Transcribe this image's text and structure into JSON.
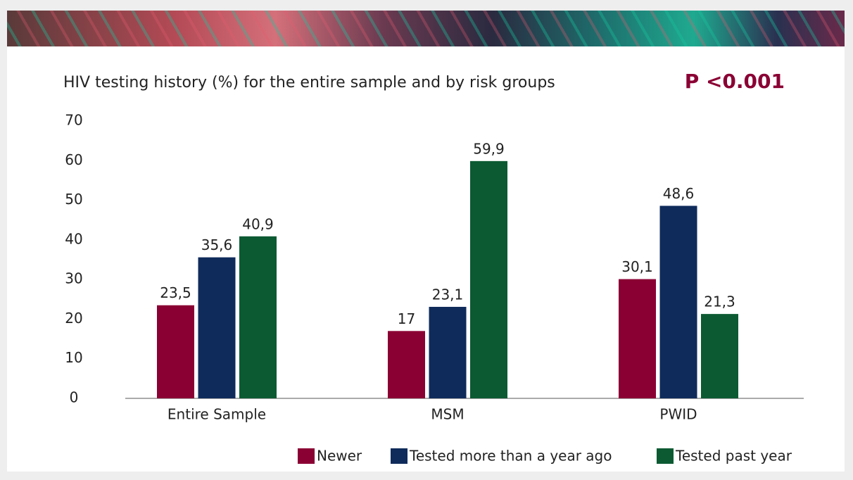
{
  "chart_data": {
    "type": "bar",
    "title": "HIV testing history (%) for the entire sample and by risk groups",
    "annotation": "P <0.001",
    "categories": [
      "Entire Sample",
      "MSM",
      "PWID"
    ],
    "series": [
      {
        "name": "Newer",
        "color": "#8a0033",
        "values": [
          23.5,
          17,
          30.1
        ],
        "value_labels": [
          "23,5",
          "17",
          "30,1"
        ]
      },
      {
        "name": "Tested more than a year ago",
        "color": "#0f2b5b",
        "values": [
          35.6,
          23.1,
          48.6
        ],
        "value_labels": [
          "35,6",
          "23,1",
          "48,6"
        ]
      },
      {
        "name": "Tested past year",
        "color": "#0c5a32",
        "values": [
          40.9,
          59.9,
          21.3
        ],
        "value_labels": [
          "40,9",
          "59,9",
          "21,3"
        ]
      }
    ],
    "ylim": [
      0,
      70
    ],
    "yticks": [
      0,
      10,
      20,
      30,
      40,
      50,
      60,
      70
    ],
    "grid": false
  }
}
